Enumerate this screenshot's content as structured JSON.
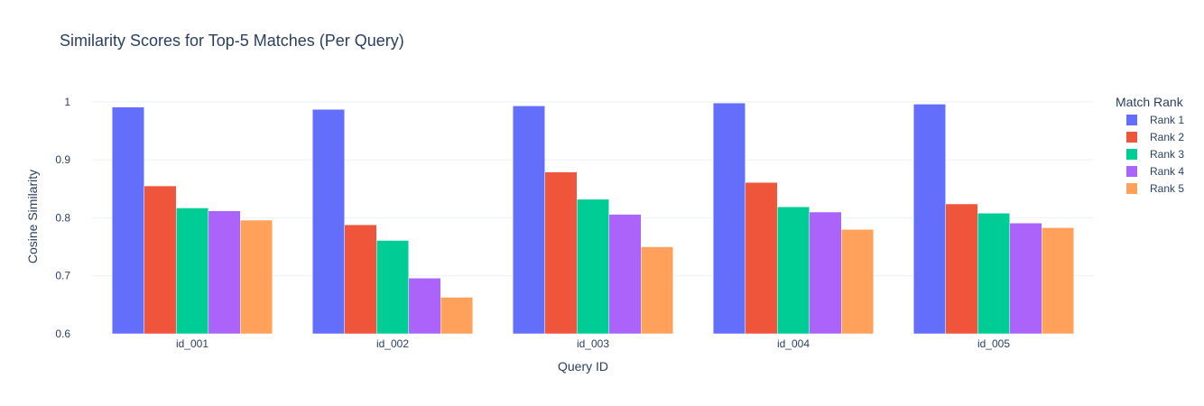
{
  "chart_data": {
    "type": "bar",
    "title": "Similarity Scores for Top-5 Matches (Per Query)",
    "xlabel": "Query ID",
    "ylabel": "Cosine Similarity",
    "ylim": [
      0.6,
      1.02
    ],
    "yticks": [
      0.6,
      0.7,
      0.8,
      0.9,
      1
    ],
    "ytick_labels": [
      "0.6",
      "0.7",
      "0.8",
      "0.9",
      "1"
    ],
    "categories": [
      "id_001",
      "id_002",
      "id_003",
      "id_004",
      "id_005"
    ],
    "legend_title": "Match Rank",
    "legend_position": "right",
    "grid": true,
    "series": [
      {
        "name": "Rank 1",
        "color": "#636efa",
        "values": [
          0.991,
          0.987,
          0.993,
          0.998,
          0.996
        ]
      },
      {
        "name": "Rank 2",
        "color": "#ef553b",
        "values": [
          0.855,
          0.788,
          0.879,
          0.861,
          0.824
        ]
      },
      {
        "name": "Rank 3",
        "color": "#00cc96",
        "values": [
          0.817,
          0.761,
          0.832,
          0.819,
          0.808
        ]
      },
      {
        "name": "Rank 4",
        "color": "#ab63fa",
        "values": [
          0.812,
          0.696,
          0.806,
          0.81,
          0.791
        ]
      },
      {
        "name": "Rank 5",
        "color": "#ffa15a",
        "values": [
          0.796,
          0.663,
          0.75,
          0.78,
          0.783
        ]
      }
    ]
  }
}
